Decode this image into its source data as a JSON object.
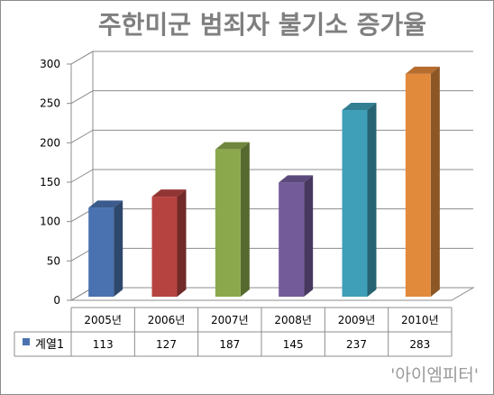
{
  "chart_data": {
    "type": "bar",
    "title": "주한미군 범죄자 불기소 증가율",
    "categories": [
      "2005년",
      "2006년",
      "2007년",
      "2008년",
      "2009년",
      "2010년"
    ],
    "series": [
      {
        "name": "계열1",
        "values": [
          113,
          127,
          187,
          145,
          237,
          283
        ]
      }
    ],
    "ylim": [
      0,
      300
    ],
    "yticks": [
      0,
      50,
      100,
      150,
      200,
      250,
      300
    ],
    "grid": true,
    "legend": "data-table-left",
    "bar_colors": [
      "#4a72b0",
      "#b74341",
      "#8ba94c",
      "#735b9a",
      "#3f9fb8",
      "#e28a3c"
    ],
    "legend_color": "#4a72b0"
  },
  "watermark": "'아이엠피터'"
}
